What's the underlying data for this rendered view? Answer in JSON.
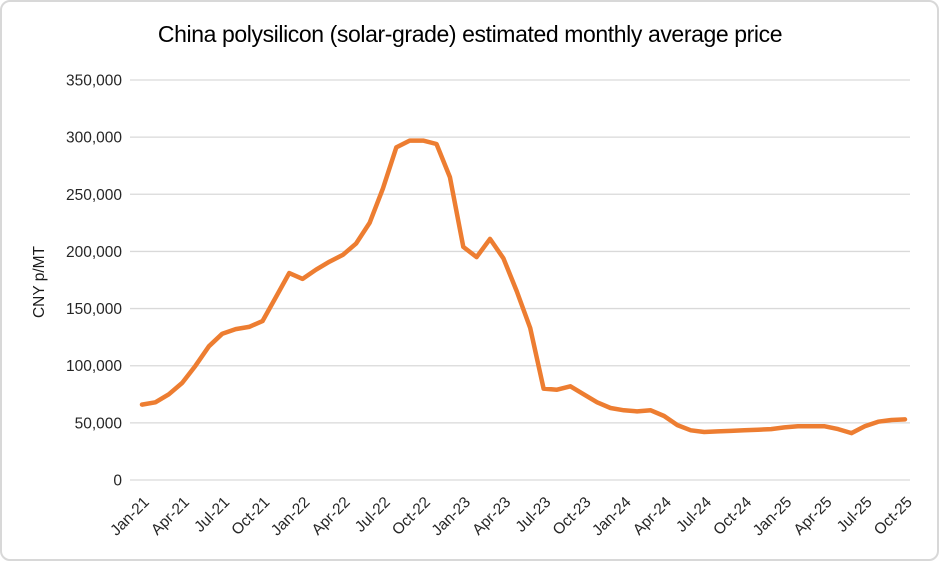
{
  "chart_data": {
    "type": "line",
    "title": "China polysilicon (solar-grade) estimated monthly average price",
    "xlabel": "",
    "ylabel": "CNY p/MT",
    "ylim": [
      0,
      350000
    ],
    "grid": true,
    "legend": "none",
    "line_color": "#ED7D31",
    "gridline_color": "#D9D9D9",
    "categories": [
      "Jan-21",
      "Feb-21",
      "Mar-21",
      "Apr-21",
      "May-21",
      "Jun-21",
      "Jul-21",
      "Aug-21",
      "Sep-21",
      "Oct-21",
      "Nov-21",
      "Dec-21",
      "Jan-22",
      "Feb-22",
      "Mar-22",
      "Apr-22",
      "May-22",
      "Jun-22",
      "Jul-22",
      "Aug-22",
      "Sep-22",
      "Oct-22",
      "Nov-22",
      "Dec-22",
      "Jan-23",
      "Feb-23",
      "Mar-23",
      "Apr-23",
      "May-23",
      "Jun-23",
      "Jul-23",
      "Aug-23",
      "Sep-23",
      "Oct-23",
      "Nov-23",
      "Dec-23",
      "Jan-24",
      "Feb-24",
      "Mar-24",
      "Apr-24",
      "May-24",
      "Jun-24",
      "Jul-24",
      "Aug-24",
      "Sep-24",
      "Oct-24",
      "Nov-24",
      "Dec-24",
      "Jan-25",
      "Feb-25",
      "Mar-25",
      "Apr-25",
      "May-25",
      "Jun-25",
      "Jul-25",
      "Aug-25",
      "Sep-25",
      "Oct-25"
    ],
    "values": [
      66000,
      68000,
      75000,
      85000,
      100000,
      117000,
      128000,
      132000,
      134000,
      139000,
      160000,
      181000,
      176000,
      184000,
      191000,
      197000,
      207000,
      225000,
      255000,
      291000,
      297000,
      297000,
      294000,
      265000,
      204000,
      195000,
      211000,
      194000,
      165000,
      133000,
      80000,
      79000,
      82000,
      75000,
      68000,
      63000,
      61000,
      60000,
      61000,
      56000,
      48000,
      43500,
      42000,
      42500,
      43000,
      43500,
      44000,
      44500,
      46000,
      47000,
      47000,
      47000,
      44500,
      41000,
      47000,
      51000,
      52500,
      53000
    ],
    "x_tick_every": 3,
    "x_tick_labels": [
      "Jan-21",
      "Apr-21",
      "Jul-21",
      "Oct-21",
      "Jan-22",
      "Apr-22",
      "Jul-22",
      "Oct-22",
      "Jan-23",
      "Apr-23",
      "Jul-23",
      "Oct-23",
      "Jan-24",
      "Apr-24",
      "Jul-24",
      "Oct-24",
      "Jan-25",
      "Apr-25",
      "Jul-25",
      "Oct-25"
    ],
    "y_ticks": [
      {
        "value": 0,
        "label": "0"
      },
      {
        "value": 50000,
        "label": "50,000"
      },
      {
        "value": 100000,
        "label": "100,000"
      },
      {
        "value": 150000,
        "label": "150,000"
      },
      {
        "value": 200000,
        "label": "200,000"
      },
      {
        "value": 250000,
        "label": "250,000"
      },
      {
        "value": 300000,
        "label": "300,000"
      },
      {
        "value": 350000,
        "label": "350,000"
      }
    ]
  }
}
